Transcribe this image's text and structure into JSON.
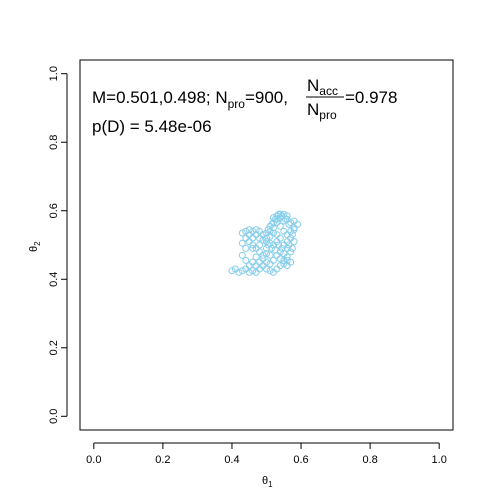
{
  "chart_data": {
    "type": "scatter",
    "xlabel": "θ",
    "xlabel_sub": "1",
    "ylabel": "θ",
    "ylabel_sub": "2",
    "xlim": [
      -0.04,
      1.04
    ],
    "ylim": [
      -0.04,
      1.04
    ],
    "x_ticks": [
      "0.0",
      "0.2",
      "0.4",
      "0.6",
      "0.8",
      "1.0"
    ],
    "y_ticks": [
      "0.0",
      "0.2",
      "0.4",
      "0.6",
      "0.8",
      "1.0"
    ],
    "point_color": "#87CEEB",
    "annotations": {
      "line1": {
        "m": "M=0.501,0.498; N",
        "m_sub": "pro",
        "after_sub": "=900,",
        "frac_num": "N",
        "frac_num_sub": "acc",
        "frac_den": "N",
        "frac_den_sub": "pro",
        "after_frac": "=0.978"
      },
      "line2": "p(D) = 5.48e-06"
    },
    "series": [
      {
        "points": [
          [
            0.4,
            0.425
          ],
          [
            0.41,
            0.43
          ],
          [
            0.42,
            0.42
          ],
          [
            0.43,
            0.425
          ],
          [
            0.44,
            0.43
          ],
          [
            0.45,
            0.44
          ],
          [
            0.44,
            0.455
          ],
          [
            0.43,
            0.47
          ],
          [
            0.44,
            0.49
          ],
          [
            0.43,
            0.505
          ],
          [
            0.44,
            0.52
          ],
          [
            0.43,
            0.535
          ],
          [
            0.45,
            0.53
          ],
          [
            0.46,
            0.52
          ],
          [
            0.47,
            0.53
          ],
          [
            0.48,
            0.52
          ],
          [
            0.49,
            0.515
          ],
          [
            0.5,
            0.51
          ],
          [
            0.51,
            0.505
          ],
          [
            0.5,
            0.49
          ],
          [
            0.49,
            0.47
          ],
          [
            0.48,
            0.45
          ],
          [
            0.47,
            0.44
          ],
          [
            0.46,
            0.45
          ],
          [
            0.47,
            0.465
          ],
          [
            0.48,
            0.48
          ],
          [
            0.47,
            0.49
          ],
          [
            0.46,
            0.5
          ],
          [
            0.45,
            0.51
          ],
          [
            0.46,
            0.49
          ],
          [
            0.48,
            0.5
          ],
          [
            0.5,
            0.52
          ],
          [
            0.51,
            0.54
          ],
          [
            0.52,
            0.55
          ],
          [
            0.53,
            0.565
          ],
          [
            0.54,
            0.58
          ],
          [
            0.55,
            0.59
          ],
          [
            0.56,
            0.585
          ],
          [
            0.55,
            0.57
          ],
          [
            0.54,
            0.555
          ],
          [
            0.55,
            0.54
          ],
          [
            0.56,
            0.53
          ],
          [
            0.57,
            0.54
          ],
          [
            0.58,
            0.55
          ],
          [
            0.57,
            0.565
          ],
          [
            0.56,
            0.575
          ],
          [
            0.58,
            0.57
          ],
          [
            0.59,
            0.56
          ],
          [
            0.58,
            0.545
          ],
          [
            0.57,
            0.52
          ],
          [
            0.56,
            0.51
          ],
          [
            0.55,
            0.5
          ],
          [
            0.56,
            0.49
          ],
          [
            0.57,
            0.48
          ],
          [
            0.56,
            0.465
          ],
          [
            0.55,
            0.455
          ],
          [
            0.54,
            0.46
          ],
          [
            0.53,
            0.47
          ],
          [
            0.54,
            0.48
          ],
          [
            0.55,
            0.475
          ],
          [
            0.56,
            0.455
          ],
          [
            0.57,
            0.45
          ],
          [
            0.56,
            0.44
          ],
          [
            0.55,
            0.445
          ],
          [
            0.54,
            0.44
          ],
          [
            0.53,
            0.43
          ],
          [
            0.52,
            0.42
          ],
          [
            0.51,
            0.425
          ],
          [
            0.5,
            0.43
          ],
          [
            0.51,
            0.445
          ],
          [
            0.52,
            0.455
          ],
          [
            0.51,
            0.47
          ],
          [
            0.5,
            0.475
          ],
          [
            0.49,
            0.46
          ],
          [
            0.5,
            0.45
          ],
          [
            0.49,
            0.44
          ],
          [
            0.48,
            0.43
          ],
          [
            0.47,
            0.42
          ],
          [
            0.46,
            0.425
          ],
          [
            0.45,
            0.42
          ],
          [
            0.52,
            0.5
          ],
          [
            0.53,
            0.51
          ],
          [
            0.54,
            0.52
          ],
          [
            0.53,
            0.53
          ],
          [
            0.52,
            0.535
          ],
          [
            0.51,
            0.525
          ],
          [
            0.5,
            0.535
          ],
          [
            0.49,
            0.53
          ],
          [
            0.48,
            0.54
          ],
          [
            0.47,
            0.545
          ],
          [
            0.46,
            0.54
          ],
          [
            0.45,
            0.545
          ],
          [
            0.44,
            0.54
          ],
          [
            0.52,
            0.58
          ],
          [
            0.53,
            0.585
          ],
          [
            0.54,
            0.59
          ],
          [
            0.53,
            0.575
          ],
          [
            0.52,
            0.565
          ],
          [
            0.51,
            0.555
          ],
          [
            0.505,
            0.545
          ],
          [
            0.515,
            0.56
          ],
          [
            0.525,
            0.575
          ],
          [
            0.535,
            0.59
          ],
          [
            0.545,
            0.585
          ],
          [
            0.555,
            0.575
          ],
          [
            0.565,
            0.56
          ],
          [
            0.575,
            0.53
          ],
          [
            0.58,
            0.51
          ],
          [
            0.575,
            0.49
          ],
          [
            0.565,
            0.5
          ],
          [
            0.545,
            0.49
          ],
          [
            0.535,
            0.5
          ],
          [
            0.525,
            0.485
          ],
          [
            0.515,
            0.49
          ],
          [
            0.505,
            0.5
          ]
        ]
      }
    ]
  }
}
